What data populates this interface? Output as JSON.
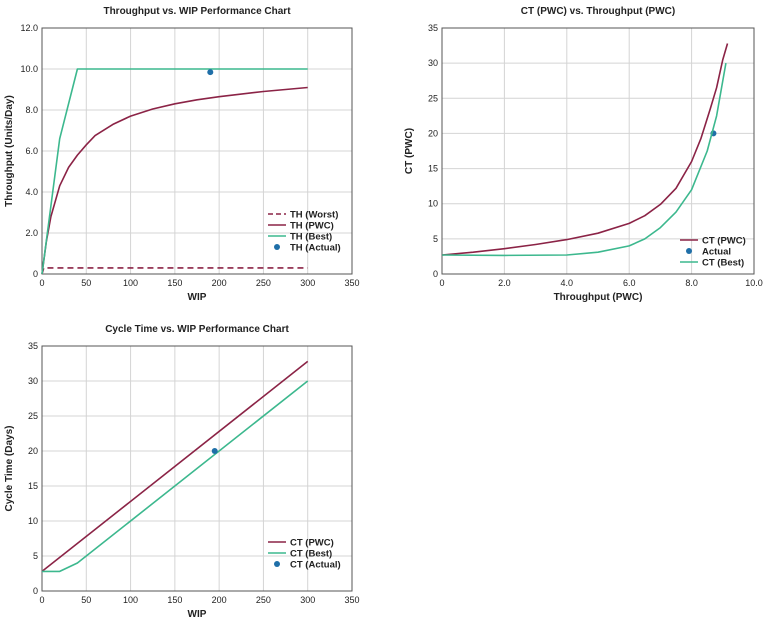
{
  "colors": {
    "pwc": "#8b2346",
    "best": "#3cb88e",
    "actual": "#1f6fa8",
    "worst": "#8b2346"
  },
  "chart_data": [
    {
      "id": "th-wip",
      "type": "line",
      "title": "Throughput vs. WIP Performance Chart",
      "xlabel": "WIP",
      "ylabel": "Throughput (Units/Day)",
      "xlim": [
        0,
        350
      ],
      "ylim": [
        0,
        12
      ],
      "xticks": [
        0,
        50,
        100,
        150,
        200,
        250,
        300,
        350
      ],
      "xtick_labels": [
        "0",
        "50",
        "100",
        "150",
        "200",
        "250",
        "300",
        "350"
      ],
      "yticks": [
        0,
        2,
        4,
        6,
        8,
        10,
        12
      ],
      "ytick_labels": [
        "0",
        "2.0",
        "4.0",
        "6.0",
        "8.0",
        "10.0",
        "12.0"
      ],
      "grid": true,
      "legend_position": "bottom-right",
      "series": [
        {
          "name": "TH (Worst)",
          "style": "dashed",
          "color_key": "worst",
          "x": [
            0,
            2,
            300
          ],
          "y": [
            0,
            0.3,
            0.3
          ]
        },
        {
          "name": "TH (PWC)",
          "style": "solid",
          "color_key": "pwc",
          "x": [
            0,
            5,
            10,
            20,
            30,
            40,
            50,
            60,
            80,
            100,
            125,
            150,
            175,
            200,
            250,
            300
          ],
          "y": [
            0,
            1.6,
            2.8,
            4.3,
            5.2,
            5.8,
            6.3,
            6.75,
            7.3,
            7.7,
            8.05,
            8.3,
            8.5,
            8.65,
            8.9,
            9.1
          ]
        },
        {
          "name": "TH (Best)",
          "style": "solid",
          "color_key": "best",
          "x": [
            0,
            20,
            40,
            300
          ],
          "y": [
            0,
            6.6,
            10,
            10
          ]
        },
        {
          "name": "TH (Actual)",
          "style": "point",
          "color_key": "actual",
          "x": [
            190
          ],
          "y": [
            9.85
          ]
        }
      ]
    },
    {
      "id": "ct-th",
      "type": "line",
      "title": "CT (PWC) vs. Throughput (PWC)",
      "xlabel": "Throughput (PWC)",
      "ylabel": "CT (PWC)",
      "xlim": [
        0,
        10
      ],
      "ylim": [
        0,
        35
      ],
      "xticks": [
        0,
        2,
        4,
        6,
        8,
        10
      ],
      "xtick_labels": [
        "0",
        "2.0",
        "4.0",
        "6.0",
        "8.0",
        "10.0"
      ],
      "yticks": [
        0,
        5,
        10,
        15,
        20,
        25,
        30,
        35
      ],
      "ytick_labels": [
        "0",
        "5",
        "10",
        "15",
        "20",
        "25",
        "30",
        "35"
      ],
      "grid": true,
      "legend_position": "bottom-right",
      "series": [
        {
          "name": "CT (PWC)",
          "style": "solid",
          "color_key": "pwc",
          "x": [
            0,
            1,
            2,
            3,
            4,
            5,
            6,
            6.5,
            7,
            7.5,
            8,
            8.3,
            8.6,
            8.8,
            9,
            9.15
          ],
          "y": [
            2.7,
            3.1,
            3.6,
            4.2,
            4.9,
            5.8,
            7.2,
            8.3,
            9.9,
            12.2,
            16.0,
            19.3,
            23.5,
            26.5,
            30.5,
            32.8
          ]
        },
        {
          "name": "Actual",
          "style": "point",
          "color_key": "actual",
          "x": [
            8.7
          ],
          "y": [
            20
          ]
        },
        {
          "name": "CT (Best)",
          "style": "solid",
          "color_key": "best",
          "x": [
            0,
            2,
            4,
            5,
            6,
            6.5,
            7,
            7.5,
            8,
            8.5,
            8.8,
            9.1
          ],
          "y": [
            2.7,
            2.65,
            2.7,
            3.1,
            4.0,
            5.0,
            6.6,
            8.8,
            12.0,
            17.5,
            22.5,
            30.0
          ]
        }
      ]
    },
    {
      "id": "ct-wip",
      "type": "line",
      "title": "Cycle Time vs. WIP Performance Chart",
      "xlabel": "WIP",
      "ylabel": "Cycle Time (Days)",
      "xlim": [
        0,
        350
      ],
      "ylim": [
        0,
        35
      ],
      "xticks": [
        0,
        50,
        100,
        150,
        200,
        250,
        300,
        350
      ],
      "xtick_labels": [
        "0",
        "50",
        "100",
        "150",
        "200",
        "250",
        "300",
        "350"
      ],
      "yticks": [
        0,
        5,
        10,
        15,
        20,
        25,
        30,
        35
      ],
      "ytick_labels": [
        "0",
        "5",
        "10",
        "15",
        "20",
        "25",
        "30",
        "35"
      ],
      "grid": true,
      "legend_position": "bottom-right",
      "series": [
        {
          "name": "CT (PWC)",
          "style": "solid",
          "color_key": "pwc",
          "x": [
            0,
            300
          ],
          "y": [
            2.8,
            32.8
          ]
        },
        {
          "name": "CT (Best)",
          "style": "solid",
          "color_key": "best",
          "x": [
            0,
            20,
            40,
            300
          ],
          "y": [
            2.8,
            2.8,
            4.0,
            30.0
          ]
        },
        {
          "name": "CT (Actual)",
          "style": "point",
          "color_key": "actual",
          "x": [
            195
          ],
          "y": [
            20
          ]
        }
      ]
    }
  ]
}
